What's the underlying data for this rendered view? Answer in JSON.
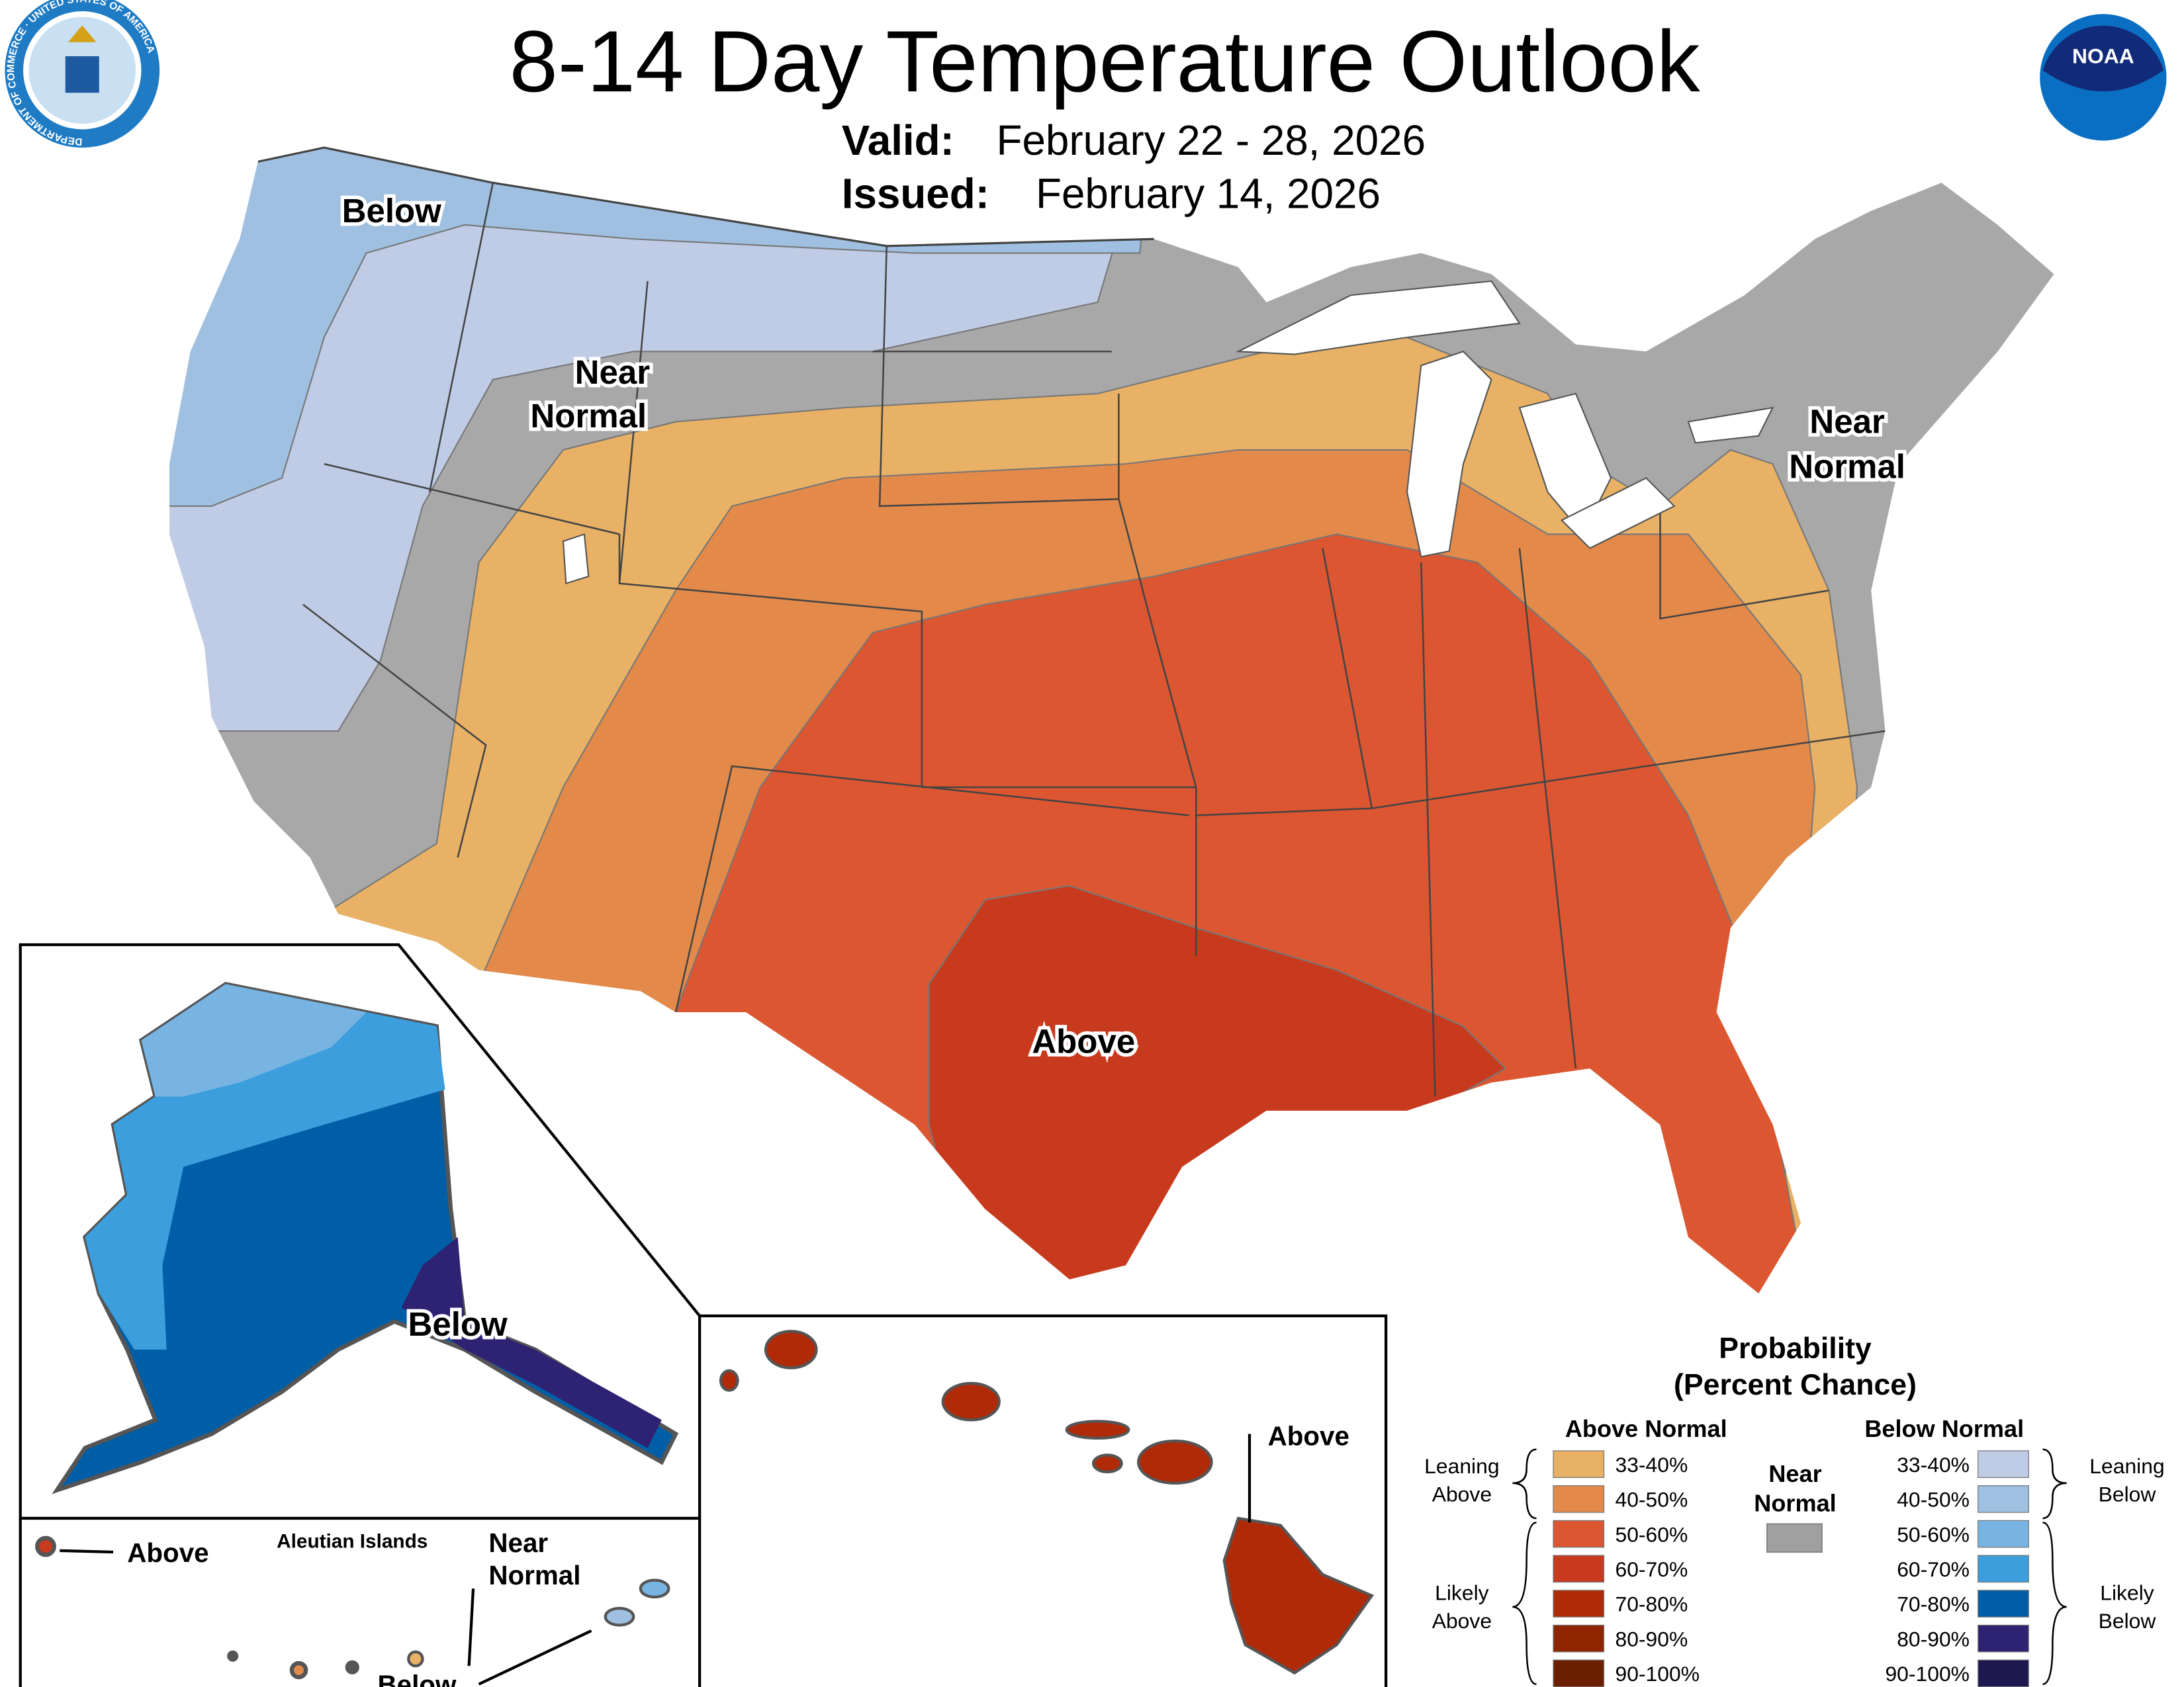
{
  "header": {
    "title": "8-14 Day Temperature Outlook",
    "valid_label": "Valid:",
    "valid_value": "February 22 - 28, 2026",
    "issued_label": "Issued:",
    "issued_value": "February 14, 2026",
    "left_logo": "department-of-commerce-seal",
    "left_logo_text": "DEPARTMENT OF COMMERCE · UNITED STATES OF AMERICA",
    "right_logo": "noaa-logo",
    "right_logo_text": "NOAA"
  },
  "map_labels": {
    "conus_northwest": "Below",
    "conus_west_near_1": "Near",
    "conus_west_near_2": "Normal",
    "conus_northeast_near_1": "Near",
    "conus_northeast_near_2": "Normal",
    "conus_south": "Above",
    "alaska": "Below",
    "hawaii": "Above",
    "aleutian_title": "Aleutian Islands",
    "aleutian_above": "Above",
    "aleutian_near_1": "Near",
    "aleutian_near_2": "Normal",
    "aleutian_below": "Below"
  },
  "legend": {
    "title_1": "Probability",
    "title_2": "(Percent Chance)",
    "above_header": "Above Normal",
    "below_header": "Below Normal",
    "near_1": "Near",
    "near_2": "Normal",
    "near_color": "#A0A0A0",
    "leaning_above_1": "Leaning",
    "leaning_above_2": "Above",
    "likely_above_1": "Likely",
    "likely_above_2": "Above",
    "leaning_below_1": "Leaning",
    "leaning_below_2": "Below",
    "likely_below_1": "Likely",
    "likely_below_2": "Below",
    "above": [
      {
        "range": "33-40%",
        "color": "#E8B165"
      },
      {
        "range": "40-50%",
        "color": "#E38A4A"
      },
      {
        "range": "50-60%",
        "color": "#DC5632"
      },
      {
        "range": "60-70%",
        "color": "#C83A1E"
      },
      {
        "range": "70-80%",
        "color": "#B02A08"
      },
      {
        "range": "80-90%",
        "color": "#8E2400"
      },
      {
        "range": "90-100%",
        "color": "#6B1E00"
      }
    ],
    "below": [
      {
        "range": "33-40%",
        "color": "#C0CCE6"
      },
      {
        "range": "40-50%",
        "color": "#9FC0E0"
      },
      {
        "range": "50-60%",
        "color": "#78B4E2"
      },
      {
        "range": "60-70%",
        "color": "#3C9EDC"
      },
      {
        "range": "70-80%",
        "color": "#005EA6"
      },
      {
        "range": "80-90%",
        "color": "#2E2272"
      },
      {
        "range": "90-100%",
        "color": "#1E1850"
      }
    ]
  }
}
